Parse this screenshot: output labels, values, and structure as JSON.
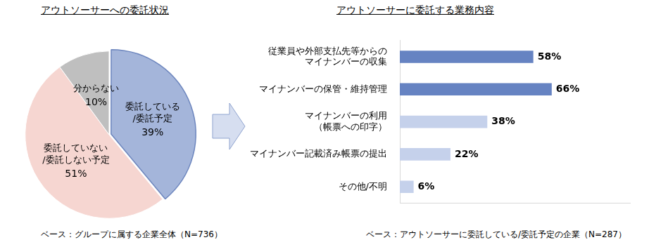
{
  "chart_data": [
    {
      "type": "pie",
      "title": "アウトソーサーへの委託状況",
      "categories": [
        "委託している\n/委託予定",
        "委託していない\n/委託しない予定",
        "分からない"
      ],
      "values": [
        39,
        51,
        10
      ],
      "value_labels": [
        "39%",
        "51%",
        "10%"
      ],
      "colors": [
        "#a4b5da",
        "#f6d6d1",
        "#bfbfbf"
      ],
      "data_labels": true,
      "annotations": [
        "ベース：グループに属する企業全体（N=736）"
      ]
    },
    {
      "type": "bar",
      "title": "アウトソーサーに委託する業務内容",
      "orientation": "horizontal",
      "categories": [
        "従業員や外部支払先等からの\nマイナンバーの収集",
        "マイナンバーの保管・維持管理",
        "マイナンバーの利用\n（帳票への印字）",
        "マイナンバー記載済み帳票の提出",
        "その他/不明"
      ],
      "values": [
        58,
        66,
        38,
        22,
        6
      ],
      "value_labels": [
        "58%",
        "66%",
        "38%",
        "22%",
        "6%"
      ],
      "colors": [
        "#6683c2",
        "#6683c2",
        "#c5d1eb",
        "#c5d1eb",
        "#c5d1eb"
      ],
      "xlim": [
        0,
        100
      ],
      "grid": false,
      "tick_labels": "y",
      "data_labels": true,
      "annotations": [
        "ベース：アウトソーサーに委託している/委託予定の企業（N=287）"
      ]
    }
  ]
}
